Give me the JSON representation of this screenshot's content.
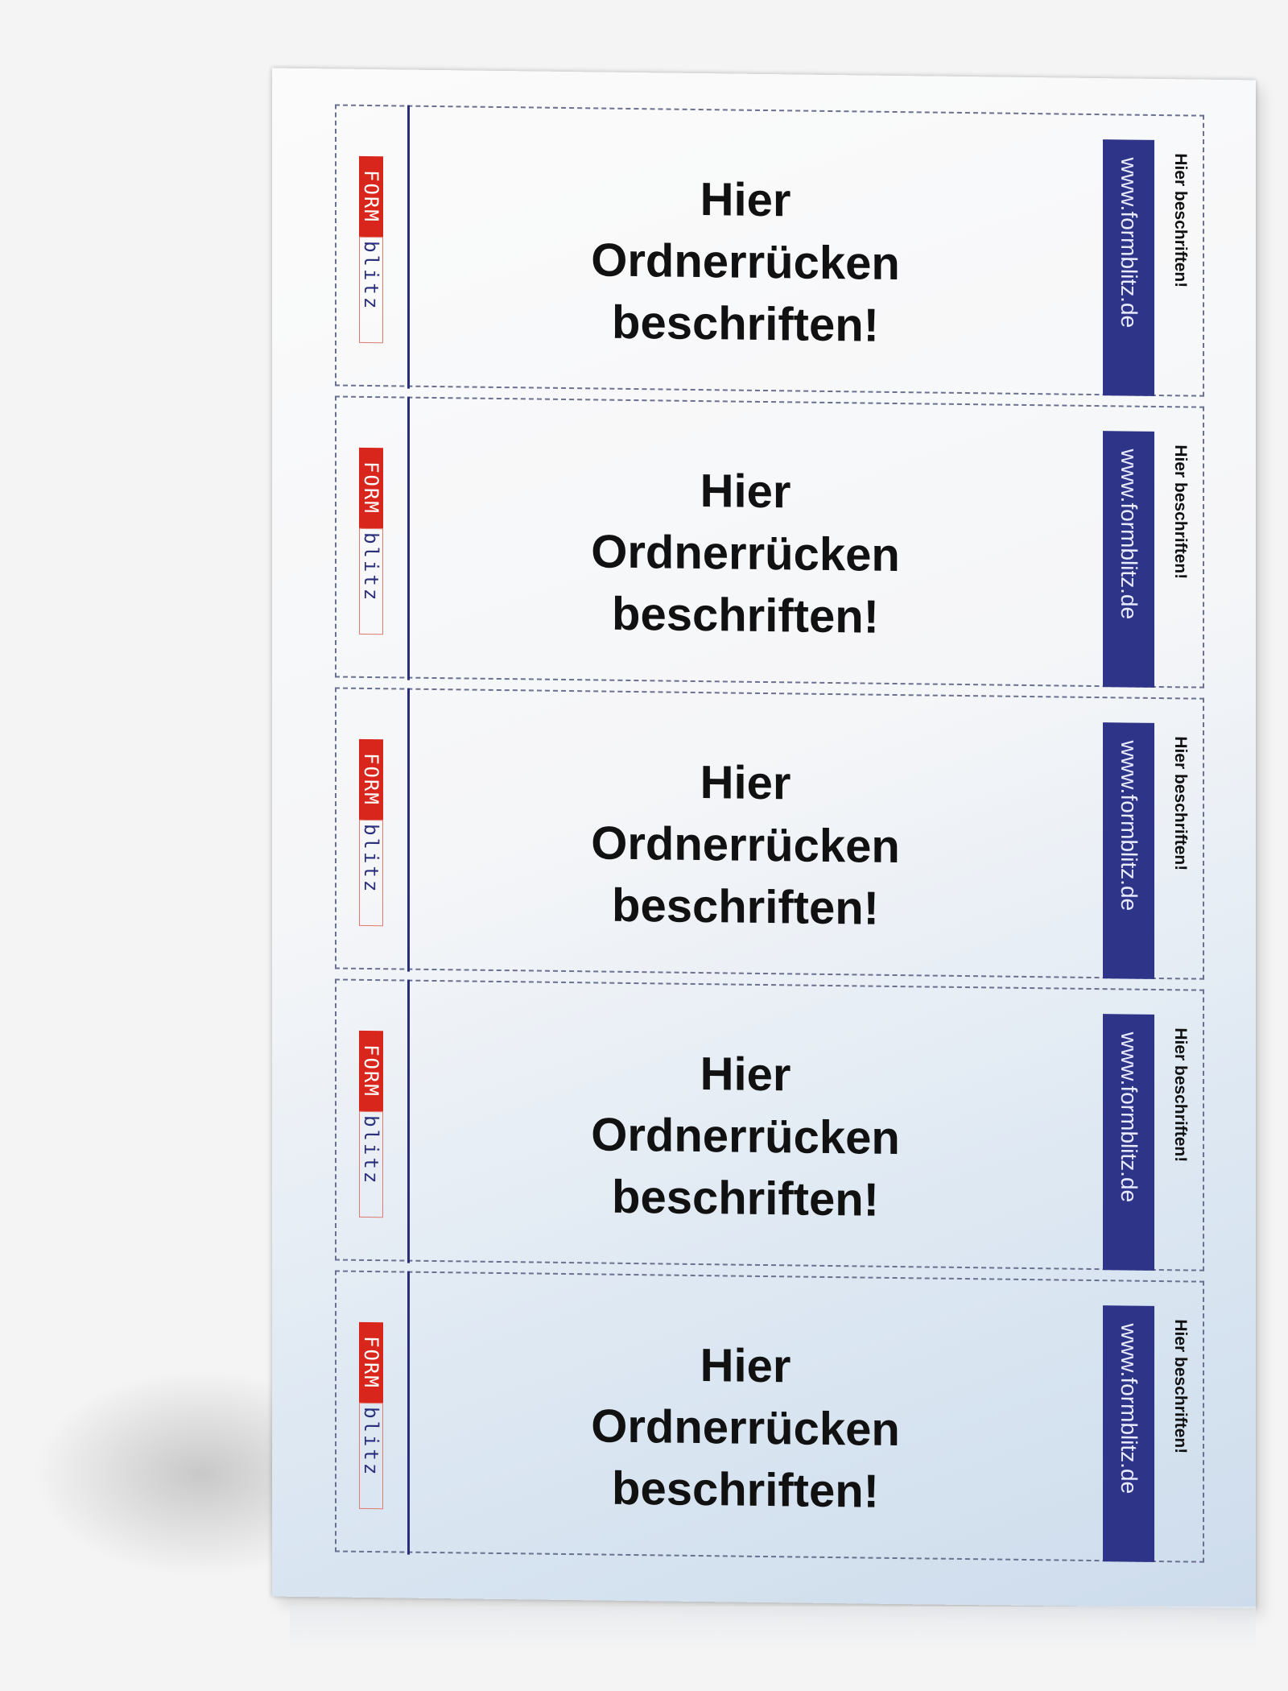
{
  "labels": [
    {
      "logo_form": "FORM",
      "logo_blitz": "blitz",
      "title_lines": [
        "Hier",
        "Ordnerrücken",
        "beschriften!"
      ],
      "url": "www.formblitz.de",
      "side_note": "Hier beschriften!"
    },
    {
      "logo_form": "FORM",
      "logo_blitz": "blitz",
      "title_lines": [
        "Hier",
        "Ordnerrücken",
        "beschriften!"
      ],
      "url": "www.formblitz.de",
      "side_note": "Hier beschriften!"
    },
    {
      "logo_form": "FORM",
      "logo_blitz": "blitz",
      "title_lines": [
        "Hier",
        "Ordnerrücken",
        "beschriften!"
      ],
      "url": "www.formblitz.de",
      "side_note": "Hier beschriften!"
    },
    {
      "logo_form": "FORM",
      "logo_blitz": "blitz",
      "title_lines": [
        "Hier",
        "Ordnerrücken",
        "beschriften!"
      ],
      "url": "www.formblitz.de",
      "side_note": "Hier beschriften!"
    },
    {
      "logo_form": "FORM",
      "logo_blitz": "blitz",
      "title_lines": [
        "Hier",
        "Ordnerrücken",
        "beschriften!"
      ],
      "url": "www.formblitz.de",
      "side_note": "Hier beschriften!"
    }
  ],
  "colors": {
    "brand_red": "#d9261c",
    "brand_blue": "#2e3488",
    "line_blue": "#2a2e7a"
  }
}
